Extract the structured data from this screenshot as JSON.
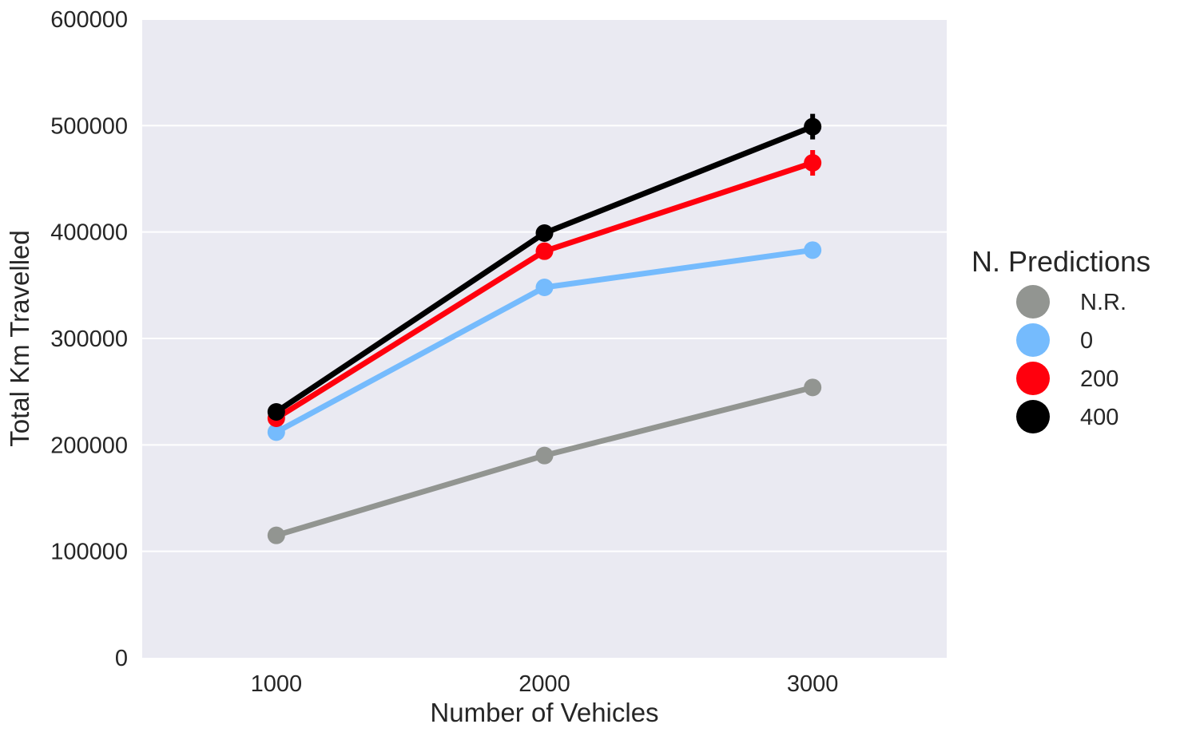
{
  "chart_data": {
    "type": "line",
    "xlabel": "Number of Vehicles",
    "ylabel": "Total Km Travelled",
    "categories": [
      "1000",
      "2000",
      "3000"
    ],
    "ylim": [
      0,
      600000
    ],
    "yticks": [
      0,
      100000,
      200000,
      300000,
      400000,
      500000,
      600000
    ],
    "grid": true,
    "legend": {
      "title": "N. Predictions",
      "placement": "right"
    },
    "series": [
      {
        "name": "N.R.",
        "color": "#929591",
        "values": [
          115000,
          190000,
          254000
        ],
        "errors": [
          2000,
          2500,
          3000
        ]
      },
      {
        "name": "0",
        "color": "#75bbfd",
        "values": [
          212000,
          348000,
          383000
        ],
        "errors": [
          3000,
          7000,
          6000
        ]
      },
      {
        "name": "200",
        "color": "#ff000d",
        "values": [
          225000,
          382000,
          465000
        ],
        "errors": [
          3000,
          8000,
          12000
        ]
      },
      {
        "name": "400",
        "color": "#000000",
        "values": [
          231000,
          399000,
          499000
        ],
        "errors": [
          3000,
          7000,
          12000
        ]
      }
    ],
    "plot_background": "#eaeaf2",
    "grid_color": "#ffffff",
    "text_color": "#262626"
  }
}
